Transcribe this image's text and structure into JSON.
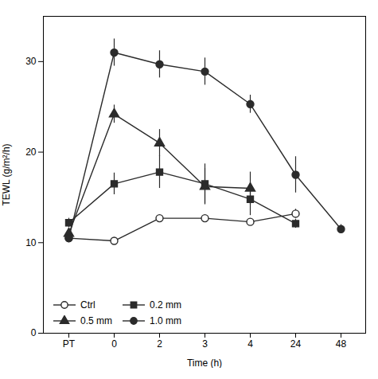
{
  "chart_data": {
    "type": "line",
    "xlabel": "Time (h)",
    "ylabel": "TEWL (g/m²/h)",
    "categories": [
      "PT",
      "0",
      "2",
      "3",
      "4",
      "24",
      "48"
    ],
    "series": [
      {
        "name": "Ctrl",
        "color": "#2b2b2b",
        "marker": "circle_open",
        "values": [
          10.5,
          10.2,
          12.7,
          12.7,
          12.3,
          13.2,
          null
        ],
        "errors": [
          0.3,
          0.3,
          0.3,
          0.3,
          0.3,
          0.5,
          null
        ]
      },
      {
        "name": "0.2 mm",
        "color": "#2b2b2b",
        "marker": "square",
        "values": [
          12.2,
          16.5,
          17.8,
          16.5,
          14.8,
          12.1,
          null
        ],
        "errors": [
          0.5,
          1.2,
          1.8,
          2.2,
          1.8,
          0.5,
          null
        ]
      },
      {
        "name": "0.5 mm",
        "color": "#2b2b2b",
        "marker": "triangle",
        "values": [
          11.0,
          24.2,
          21.0,
          16.2,
          16.0,
          null,
          null
        ],
        "errors": [
          0.5,
          1.0,
          1.5,
          2.0,
          1.8,
          null,
          null
        ]
      },
      {
        "name": "1.0 mm",
        "color": "#2b2b2b",
        "marker": "circle",
        "values": [
          10.5,
          31.0,
          29.7,
          28.9,
          25.3,
          17.5,
          11.5
        ],
        "errors": [
          0.5,
          1.5,
          1.5,
          1.5,
          1.0,
          2.0,
          0.5
        ]
      }
    ],
    "ylim": [
      0,
      35
    ],
    "yticks": [
      0,
      10,
      20,
      30
    ],
    "grid": false,
    "legend": "lower left"
  }
}
